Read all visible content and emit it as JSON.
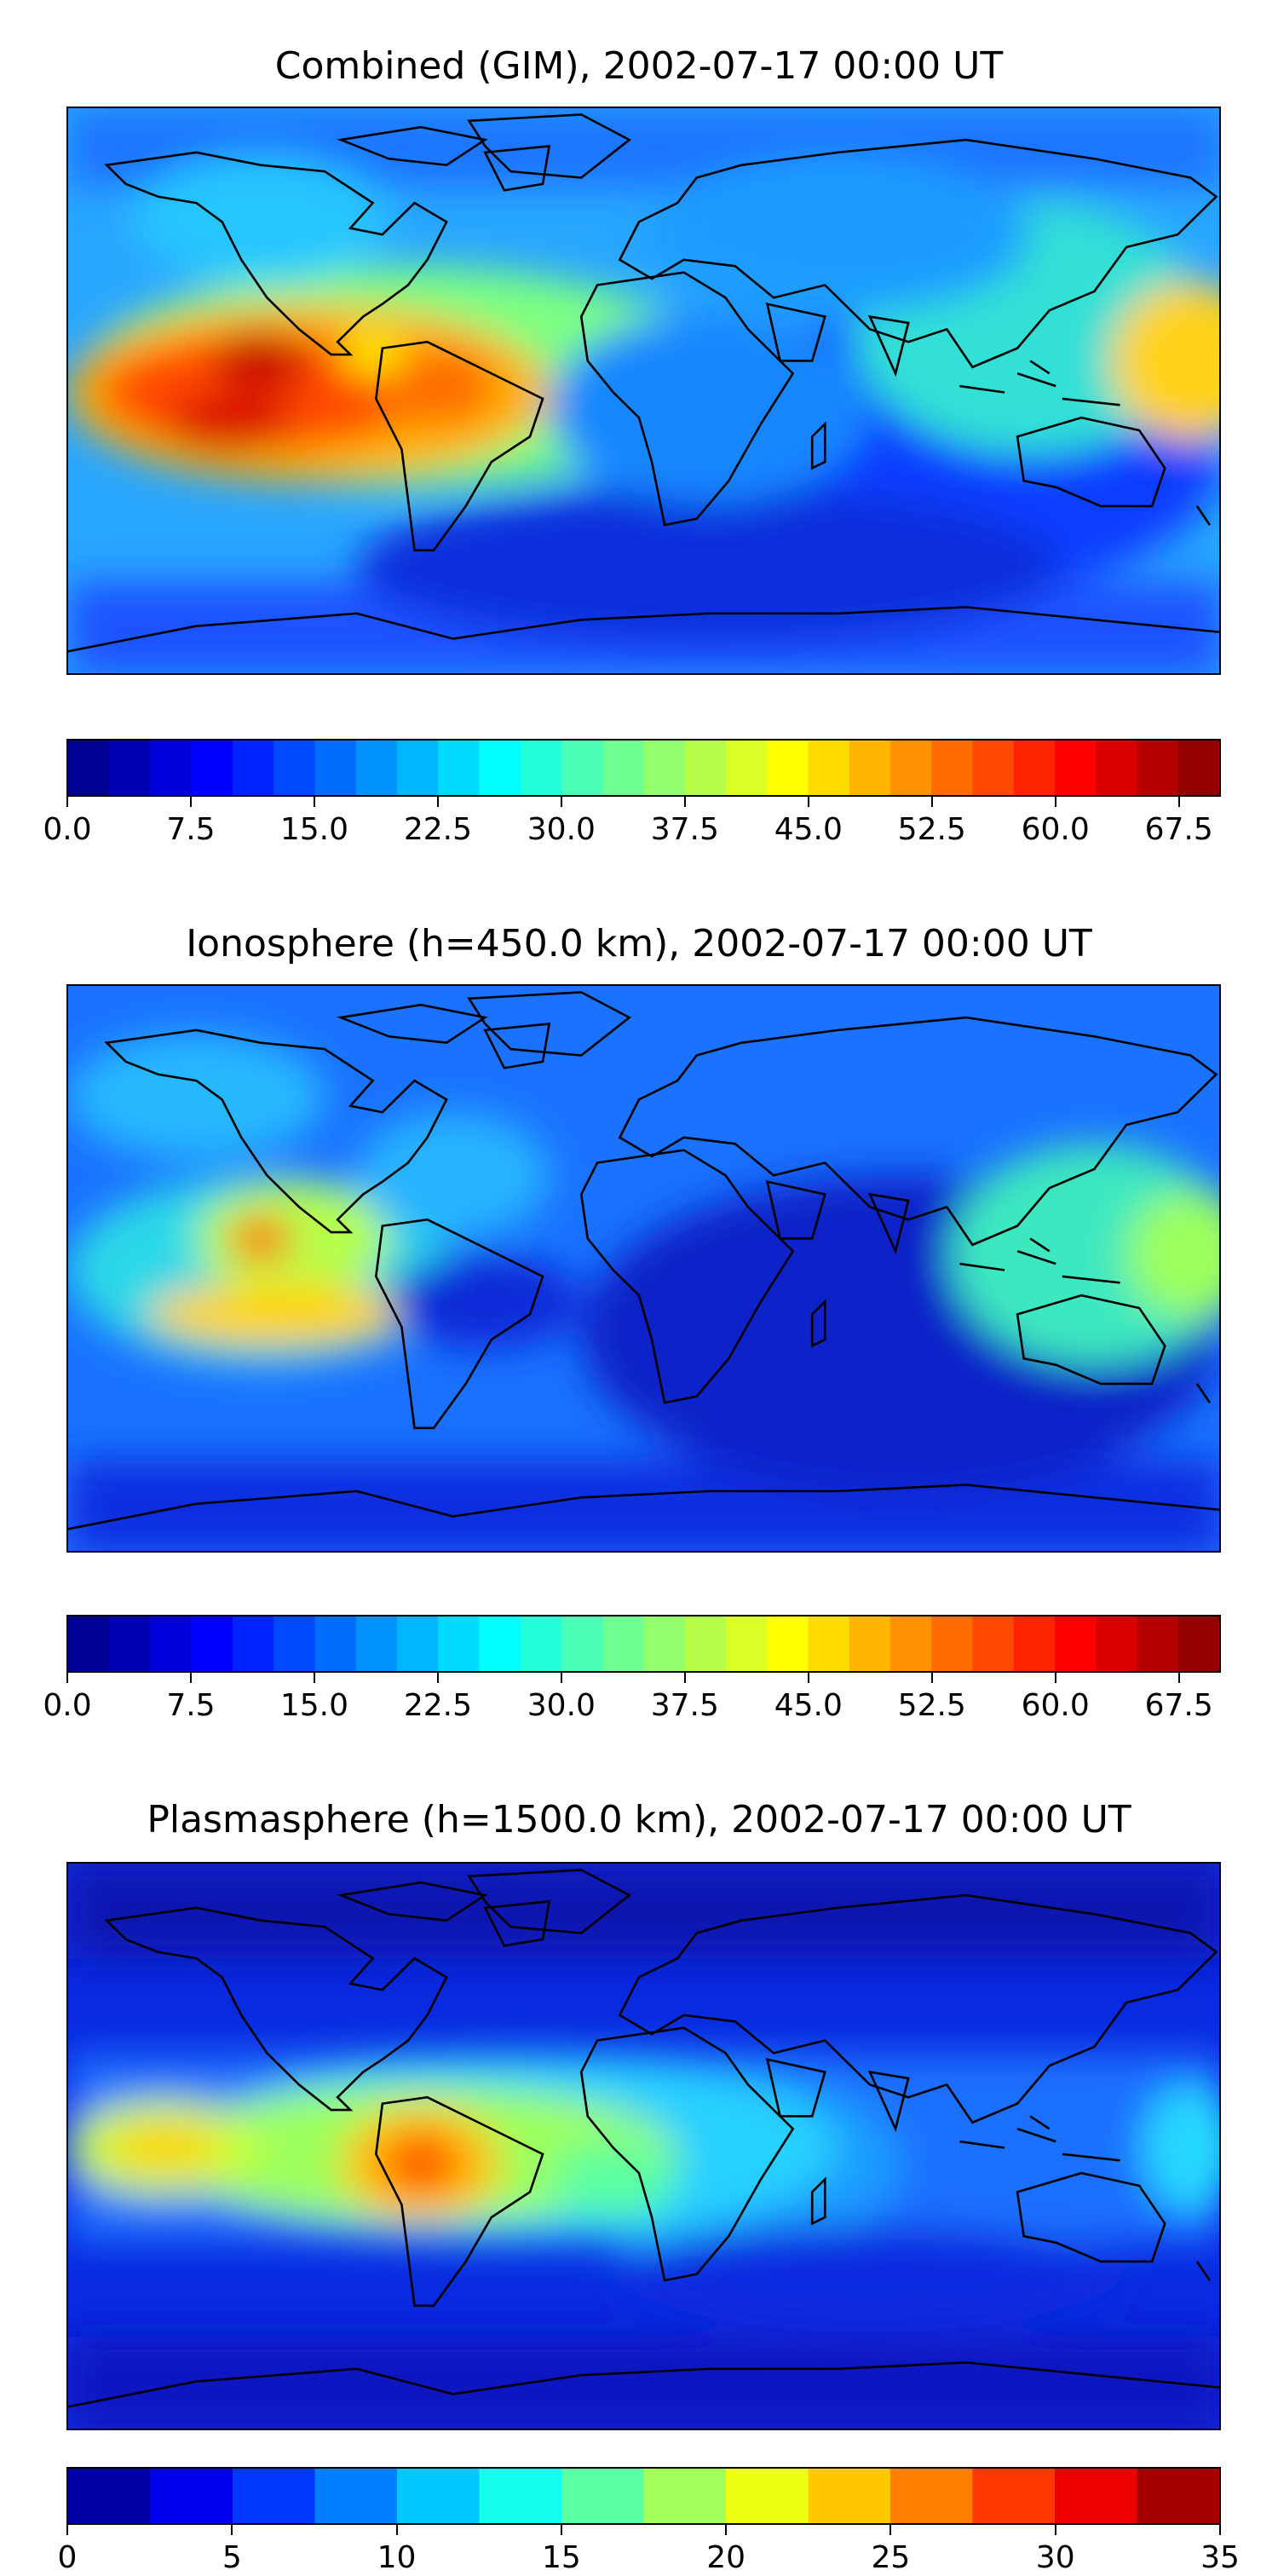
{
  "chart_data": [
    {
      "type": "heatmap",
      "title": "Combined (GIM), 2002-07-17 00:00 UT",
      "colormap": "jet",
      "colorbar": {
        "range": [
          0.0,
          70.0
        ],
        "levels": 28,
        "step": 2.5,
        "tick_labels": [
          "0.0",
          "7.5",
          "15.0",
          "22.5",
          "30.0",
          "37.5",
          "45.0",
          "52.5",
          "60.0",
          "67.5"
        ],
        "tick_values": [
          0.0,
          7.5,
          15.0,
          22.5,
          30.0,
          37.5,
          45.0,
          52.5,
          60.0,
          67.5
        ]
      },
      "map": "world coastlines, equirectangular, longitude -180 to 180, latitude -90 to 90",
      "features": [
        {
          "lon": -130,
          "lat": 10,
          "value": 65
        },
        {
          "lon": -110,
          "lat": 15,
          "value": 62
        },
        {
          "lon": -100,
          "lat": 5,
          "value": 58
        },
        {
          "lon": -75,
          "lat": 10,
          "value": 48
        },
        {
          "lon": 175,
          "lat": 15,
          "value": 52
        },
        {
          "lon": 130,
          "lat": 5,
          "value": 35
        },
        {
          "lon": 60,
          "lat": -20,
          "value": 12
        },
        {
          "lon": 0,
          "lat": -60,
          "value": 10
        }
      ]
    },
    {
      "type": "heatmap",
      "title": "Ionosphere  (h=450.0 km), 2002-07-17 00:00 UT",
      "colormap": "jet",
      "colorbar": {
        "range": [
          0.0,
          70.0
        ],
        "levels": 28,
        "step": 2.5,
        "tick_labels": [
          "0.0",
          "7.5",
          "15.0",
          "22.5",
          "30.0",
          "37.5",
          "45.0",
          "52.5",
          "60.0",
          "67.5"
        ],
        "tick_values": [
          0.0,
          7.5,
          15.0,
          22.5,
          30.0,
          37.5,
          45.0,
          52.5,
          60.0,
          67.5
        ]
      },
      "map": "world coastlines, equirectangular, longitude -180 to 180, latitude -90 to 90",
      "features": [
        {
          "lon": -115,
          "lat": 20,
          "value": 50
        },
        {
          "lon": -120,
          "lat": -5,
          "value": 40
        },
        {
          "lon": 170,
          "lat": 10,
          "value": 35
        },
        {
          "lon": 130,
          "lat": 5,
          "value": 28
        },
        {
          "lon": 60,
          "lat": -15,
          "value": 5
        },
        {
          "lon": 0,
          "lat": -60,
          "value": 8
        }
      ]
    },
    {
      "type": "heatmap",
      "title": "Plasmasphere (h=1500.0 km), 2002-07-17 00:00 UT",
      "colormap": "jet",
      "colorbar": {
        "range": [
          0,
          35
        ],
        "levels": 14,
        "step": 2.5,
        "tick_labels": [
          "0",
          "5",
          "10",
          "15",
          "20",
          "25",
          "30",
          "35"
        ],
        "tick_values": [
          0,
          5,
          10,
          15,
          20,
          25,
          30,
          35
        ]
      },
      "map": "world coastlines, equirectangular, longitude -180 to 180, latitude -90 to 90",
      "features": [
        {
          "lon": -75,
          "lat": -15,
          "value": 29
        },
        {
          "lon": -150,
          "lat": -5,
          "value": 25
        },
        {
          "lon": -20,
          "lat": -15,
          "value": 17
        },
        {
          "lon": 170,
          "lat": 0,
          "value": 13
        },
        {
          "lon": 60,
          "lat": 40,
          "value": 6
        },
        {
          "lon": 0,
          "lat": 75,
          "value": 2
        }
      ]
    }
  ]
}
